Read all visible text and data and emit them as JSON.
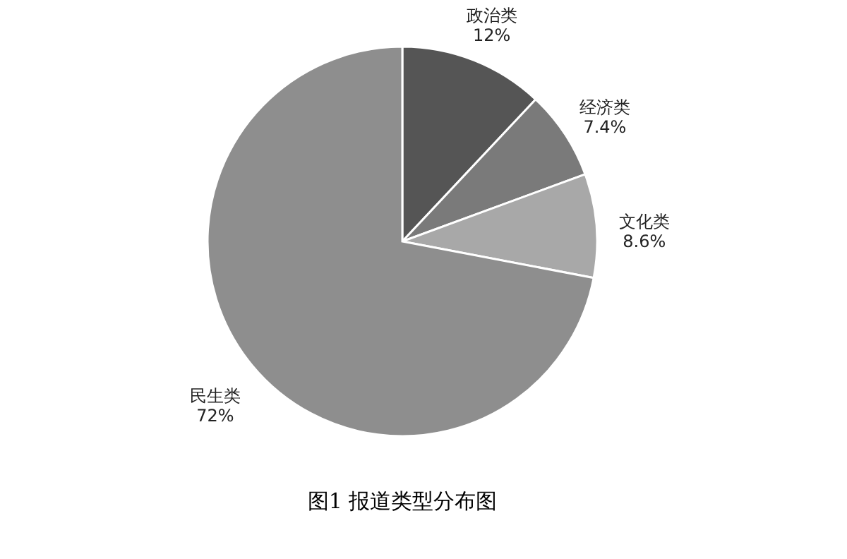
{
  "chart_data": {
    "type": "pie",
    "title": "图1 报道类型分布图",
    "categories": [
      "政治类",
      "经济类",
      "文化类",
      "民生类"
    ],
    "values": [
      12,
      7.4,
      8.6,
      72
    ],
    "value_labels": [
      "12%",
      "7.4%",
      "8.6%",
      "72%"
    ],
    "colors": [
      "#555555",
      "#7a7a7a",
      "#a8a8a8",
      "#8e8e8e"
    ],
    "legend": false
  }
}
